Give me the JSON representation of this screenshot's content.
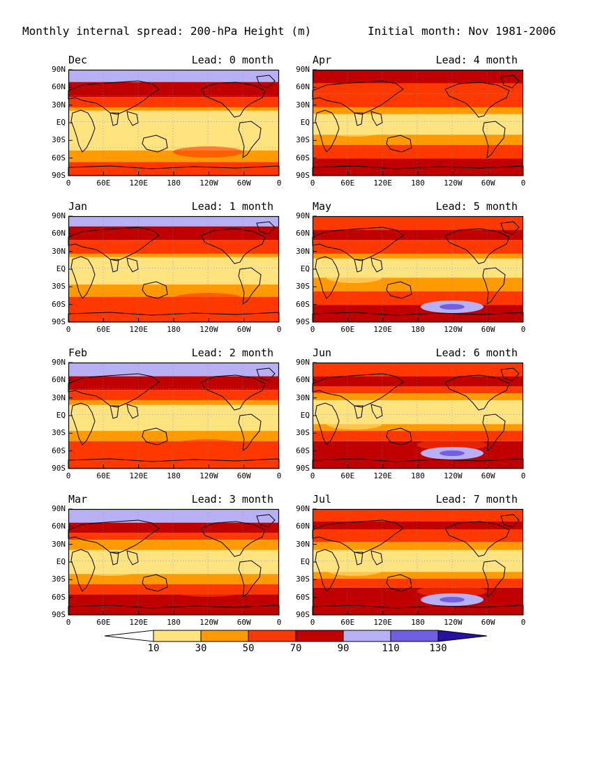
{
  "title_left": "Monthly internal spread: 200-hPa Height (m)",
  "title_right": "Initial month: Nov 1981-2006",
  "lat_labels": [
    "90N",
    "60N",
    "30N",
    "EQ",
    "30S",
    "60S",
    "90S"
  ],
  "lon_labels": [
    "0",
    "60E",
    "120E",
    "180",
    "120W",
    "60W",
    "0"
  ],
  "lon_labels_alt": [
    "0",
    "60E",
    "120E",
    "180",
    "120W",
    "60W",
    "0"
  ],
  "lon_labels_jul": [
    "0",
    "60E",
    "120E",
    "180",
    "120W",
    "60W",
    "0"
  ],
  "panels": [
    {
      "month": "Dec",
      "lead": "Lead: 0 month",
      "col": 0,
      "row": 0,
      "bands": [
        [
          "#b8b0f4",
          0,
          18
        ],
        [
          "#c00000",
          18,
          40
        ],
        [
          "#ff3800",
          40,
          55
        ],
        [
          "#ff9a00",
          55,
          60
        ],
        [
          "#ffe37e",
          60,
          118
        ],
        [
          "#ff9a00",
          118,
          135
        ],
        [
          "#ff3800",
          135,
          155
        ]
      ]
    },
    {
      "month": "Apr",
      "lead": "Lead: 4 month",
      "col": 1,
      "row": 0,
      "bands": [
        [
          "#c00000",
          0,
          20
        ],
        [
          "#ff3800",
          20,
          35
        ],
        [
          "#ff3800",
          35,
          55
        ],
        [
          "#ff9a00",
          55,
          65
        ],
        [
          "#ffe37e",
          65,
          95
        ],
        [
          "#ff9a00",
          95,
          110
        ],
        [
          "#ff3800",
          110,
          130
        ],
        [
          "#c00000",
          130,
          155
        ]
      ]
    },
    {
      "month": "Jan",
      "lead": "Lead: 1 month",
      "col": 0,
      "row": 1,
      "bands": [
        [
          "#b8b0f4",
          0,
          15
        ],
        [
          "#c00000",
          15,
          35
        ],
        [
          "#ff3800",
          35,
          55
        ],
        [
          "#ff9a00",
          55,
          60
        ],
        [
          "#ffe37e",
          60,
          100
        ],
        [
          "#ff9a00",
          100,
          118
        ],
        [
          "#ff3800",
          118,
          155
        ]
      ]
    },
    {
      "month": "May",
      "lead": "Lead: 5 month",
      "col": 1,
      "row": 1,
      "bands": [
        [
          "#ff3800",
          0,
          20
        ],
        [
          "#c00000",
          20,
          35
        ],
        [
          "#ff3800",
          35,
          55
        ],
        [
          "#ff9a00",
          55,
          62
        ],
        [
          "#ffe37e",
          62,
          90
        ],
        [
          "#ff9a00",
          90,
          110
        ],
        [
          "#ff3800",
          110,
          130
        ],
        [
          "#c00000",
          130,
          155
        ]
      ]
    },
    {
      "month": "Feb",
      "lead": "Lead: 2 month",
      "col": 0,
      "row": 2,
      "bands": [
        [
          "#b8b0f4",
          0,
          20
        ],
        [
          "#c00000",
          20,
          40
        ],
        [
          "#ff3800",
          40,
          55
        ],
        [
          "#ff9a00",
          55,
          62
        ],
        [
          "#ffe37e",
          62,
          100
        ],
        [
          "#ff9a00",
          100,
          115
        ],
        [
          "#ff3800",
          115,
          155
        ]
      ]
    },
    {
      "month": "Jun",
      "lead": "Lead: 6 month",
      "col": 1,
      "row": 2,
      "bands": [
        [
          "#ff3800",
          0,
          20
        ],
        [
          "#c00000",
          20,
          35
        ],
        [
          "#ff3800",
          35,
          45
        ],
        [
          "#ff9a00",
          45,
          55
        ],
        [
          "#ffe37e",
          55,
          90
        ],
        [
          "#ff9a00",
          90,
          100
        ],
        [
          "#ff3800",
          100,
          115
        ],
        [
          "#c00000",
          115,
          155
        ]
      ]
    },
    {
      "month": "Mar",
      "lead": "Lead: 3 month",
      "col": 0,
      "row": 3,
      "bands": [
        [
          "#b8b0f4",
          0,
          20
        ],
        [
          "#c00000",
          20,
          35
        ],
        [
          "#ff3800",
          35,
          45
        ],
        [
          "#ff9a00",
          45,
          60
        ],
        [
          "#ffe37e",
          60,
          95
        ],
        [
          "#ff9a00",
          95,
          110
        ],
        [
          "#ff3800",
          110,
          125
        ],
        [
          "#c00000",
          125,
          155
        ]
      ]
    },
    {
      "month": "Jul",
      "lead": "Lead: 7 month",
      "col": 1,
      "row": 3,
      "bands": [
        [
          "#ff3800",
          0,
          18
        ],
        [
          "#c00000",
          18,
          30
        ],
        [
          "#ff3800",
          30,
          48
        ],
        [
          "#ff9a00",
          48,
          60
        ],
        [
          "#ffe37e",
          60,
          92
        ],
        [
          "#ff9a00",
          92,
          102
        ],
        [
          "#ff3800",
          102,
          115
        ],
        [
          "#c00000",
          115,
          155
        ]
      ]
    }
  ],
  "colorbar": {
    "labels": [
      "10",
      "30",
      "50",
      "70",
      "90",
      "110",
      "130"
    ],
    "colors": [
      "#ffffff",
      "#ffe37e",
      "#ff9a00",
      "#ff3800",
      "#c00000",
      "#b8b0f4",
      "#7060e0",
      "#2a10a0"
    ]
  }
}
